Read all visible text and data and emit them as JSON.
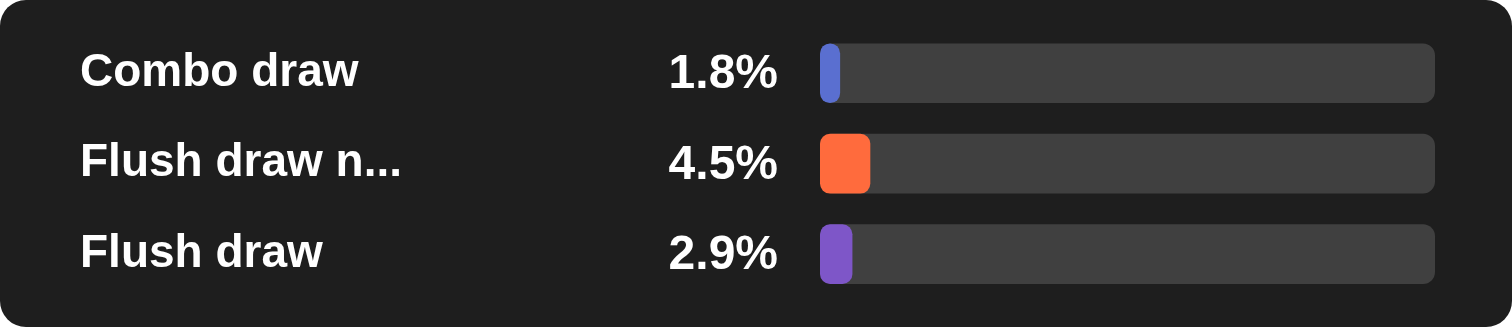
{
  "chart_data": {
    "type": "bar",
    "orientation": "horizontal",
    "categories": [
      "Combo draw",
      "Flush draw n...",
      "Flush draw"
    ],
    "values": [
      1.8,
      4.5,
      2.9
    ],
    "colors": [
      "#5a6fd0",
      "#ff6b3d",
      "#7e56c8"
    ],
    "value_labels": [
      "1.8%",
      "4.5%",
      "2.9%"
    ],
    "xlim": [
      0,
      55
    ],
    "tick_labels": "y",
    "grid": false,
    "legend": false
  }
}
